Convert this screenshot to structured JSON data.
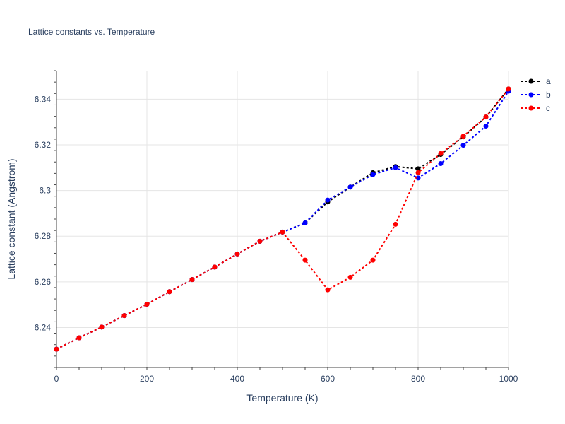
{
  "chart_data": {
    "type": "line",
    "title": "Lattice constants vs. Temperature",
    "xlabel": "Temperature (K)",
    "ylabel": "Lattice constant (Angstrom)",
    "xlim": [
      0,
      1000
    ],
    "ylim": [
      6.2225,
      6.3525
    ],
    "x_ticks": [
      0,
      200,
      400,
      600,
      800,
      1000
    ],
    "y_ticks": [
      6.24,
      6.26,
      6.28,
      6.3,
      6.32,
      6.34
    ],
    "x_tick_labels": [
      "0",
      "200",
      "400",
      "600",
      "800",
      "1000"
    ],
    "y_tick_labels": [
      "6.24",
      "6.26",
      "6.28",
      "6.3",
      "6.32",
      "6.34"
    ],
    "grid": true,
    "legend_position": "top-right",
    "x": [
      0,
      50,
      100,
      150,
      200,
      250,
      300,
      350,
      400,
      450,
      500,
      550,
      600,
      650,
      700,
      750,
      800,
      850,
      900,
      950,
      1000
    ],
    "series": [
      {
        "name": "a",
        "color": "#000000",
        "values": [
          6.2305,
          6.2355,
          6.2402,
          6.2452,
          6.2502,
          6.2557,
          6.261,
          6.2665,
          6.2722,
          6.2778,
          6.2818,
          6.2858,
          6.295,
          6.3015,
          6.3078,
          6.3105,
          6.3095,
          6.3158,
          6.3235,
          6.3322,
          6.3445
        ]
      },
      {
        "name": "b",
        "color": "#0000ff",
        "values": [
          6.2305,
          6.2355,
          6.2402,
          6.2452,
          6.2502,
          6.2557,
          6.261,
          6.2665,
          6.2722,
          6.2778,
          6.2818,
          6.2858,
          6.2958,
          6.3015,
          6.307,
          6.31,
          6.3055,
          6.3118,
          6.3198,
          6.3282,
          6.3435
        ]
      },
      {
        "name": "c",
        "color": "#ff0000",
        "values": [
          6.2305,
          6.2355,
          6.2402,
          6.2452,
          6.2502,
          6.2557,
          6.261,
          6.2665,
          6.2722,
          6.2778,
          6.2818,
          6.2695,
          6.2565,
          6.262,
          6.2695,
          6.2852,
          6.3078,
          6.3162,
          6.3238,
          6.3322,
          6.3445
        ]
      }
    ]
  }
}
